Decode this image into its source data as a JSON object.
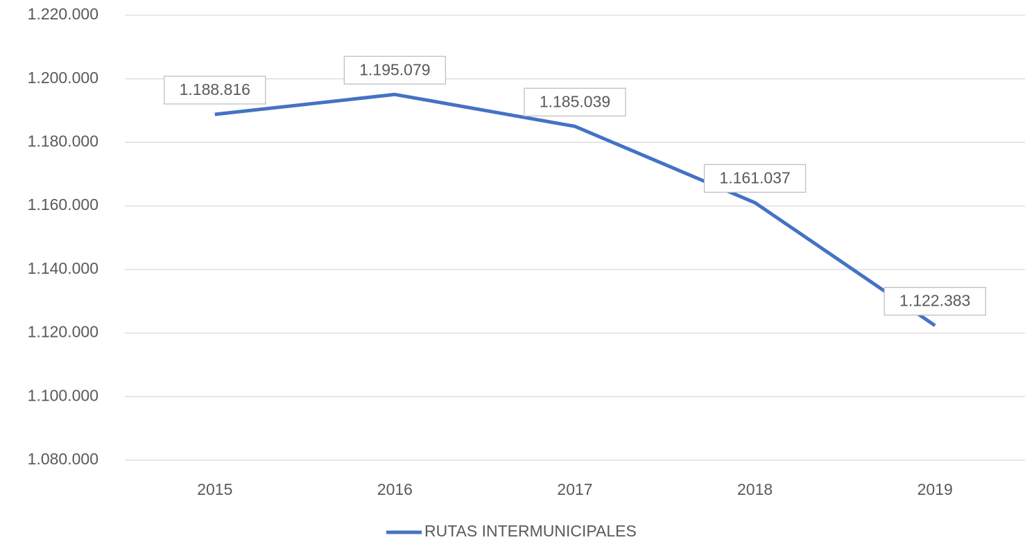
{
  "chart_data": {
    "type": "line",
    "categories": [
      "2015",
      "2016",
      "2017",
      "2018",
      "2019"
    ],
    "series": [
      {
        "name": "RUTAS INTERMUNICIPALES",
        "color": "#4472c4",
        "values": [
          1188816,
          1195079,
          1185039,
          1161037,
          1122383
        ],
        "value_labels": [
          "1.188.816",
          "1.195.079",
          "1.185.039",
          "1.161.037",
          "1.122.383"
        ]
      }
    ],
    "ylim": [
      1080000,
      1220000
    ],
    "yticks": [
      {
        "value": 1080000,
        "label": "1.080.000"
      },
      {
        "value": 1100000,
        "label": "1.100.000"
      },
      {
        "value": 1120000,
        "label": "1.120.000"
      },
      {
        "value": 1140000,
        "label": "1.140.000"
      },
      {
        "value": 1160000,
        "label": "1.160.000"
      },
      {
        "value": 1180000,
        "label": "1.180.000"
      },
      {
        "value": 1200000,
        "label": "1.200.000"
      },
      {
        "value": 1220000,
        "label": "1.220.000"
      }
    ],
    "grid": true,
    "legend": "bottom"
  }
}
